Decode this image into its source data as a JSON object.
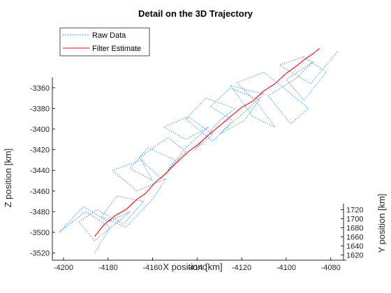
{
  "chart_data": {
    "type": "line",
    "title": "Detail on the 3D Trajectory",
    "xlabel": "X position [km]",
    "ylabel": "Z position [km]",
    "zlabel": "Y position [km]",
    "xlim": [
      -4205,
      -4073
    ],
    "zlim": [
      -3527,
      -3350
    ],
    "ylim_depth": [
      1613,
      1727
    ],
    "x_ticks": [
      -4200,
      -4180,
      -4160,
      -4140,
      -4120,
      -4100,
      -4080
    ],
    "z_ticks": [
      -3360,
      -3380,
      -3400,
      -3420,
      -3440,
      -3460,
      -3480,
      -3500,
      -3520
    ],
    "depth_ticks": [
      1620,
      1640,
      1660,
      1680,
      1700,
      1720
    ],
    "legend_position": "top-left",
    "grid": false,
    "series": [
      {
        "name": "Raw Data",
        "color": "#0072BD",
        "line_style": "dotted",
        "x": [
          -4186,
          -4179,
          -4190,
          -4202,
          -4191,
          -4180,
          -4170,
          -4186,
          -4193,
          -4185,
          -4173,
          -4164,
          -4176,
          -4183,
          -4172,
          -4160,
          -4154,
          -4167,
          -4178,
          -4165,
          -4160,
          -4170,
          -4162,
          -4150,
          -4156,
          -4166,
          -4153,
          -4145,
          -4153,
          -4145,
          -4135,
          -4145,
          -4155,
          -4144,
          -4133,
          -4141,
          -4130,
          -4123,
          -4136,
          -4145,
          -4133,
          -4124,
          -4134,
          -4125,
          -4112,
          -4119,
          -4130,
          -4118,
          -4110,
          -4125,
          -4115,
          -4105,
          -4113,
          -4122,
          -4110,
          -4100,
          -4090,
          -4098,
          -4108,
          -4095,
          -4088,
          -4100,
          -4092,
          -4082,
          -4092,
          -4103,
          -4089,
          -4077
        ],
        "y": [
          -3520,
          -3495,
          -3480,
          -3500,
          -3475,
          -3490,
          -3480,
          -3508,
          -3490,
          -3478,
          -3492,
          -3470,
          -3465,
          -3485,
          -3495,
          -3468,
          -3448,
          -3460,
          -3440,
          -3430,
          -3450,
          -3438,
          -3418,
          -3430,
          -3448,
          -3428,
          -3408,
          -3422,
          -3440,
          -3418,
          -3398,
          -3410,
          -3398,
          -3388,
          -3405,
          -3420,
          -3392,
          -3380,
          -3370,
          -3390,
          -3412,
          -3392,
          -3378,
          -3360,
          -3372,
          -3392,
          -3405,
          -3382,
          -3366,
          -3358,
          -3388,
          -3398,
          -3375,
          -3355,
          -3345,
          -3362,
          -3380,
          -3395,
          -3368,
          -3350,
          -3335,
          -3352,
          -3372,
          -3345,
          -3330,
          -3338,
          -3356,
          -3325
        ]
      },
      {
        "name": "Filter Estimate",
        "color": "#FF0000",
        "line_style": "solid",
        "x": [
          -4186,
          -4182,
          -4177,
          -4172,
          -4167,
          -4163,
          -4159,
          -4154,
          -4149,
          -4144,
          -4139,
          -4135,
          -4130,
          -4125,
          -4120,
          -4115,
          -4110,
          -4105,
          -4100,
          -4096,
          -4092,
          -4088,
          -4085
        ],
        "y": [
          -3504,
          -3493,
          -3484,
          -3478,
          -3468,
          -3462,
          -3452,
          -3443,
          -3432,
          -3422,
          -3414,
          -3406,
          -3397,
          -3388,
          -3379,
          -3373,
          -3363,
          -3356,
          -3346,
          -3340,
          -3333,
          -3327,
          -3322
        ]
      }
    ]
  }
}
